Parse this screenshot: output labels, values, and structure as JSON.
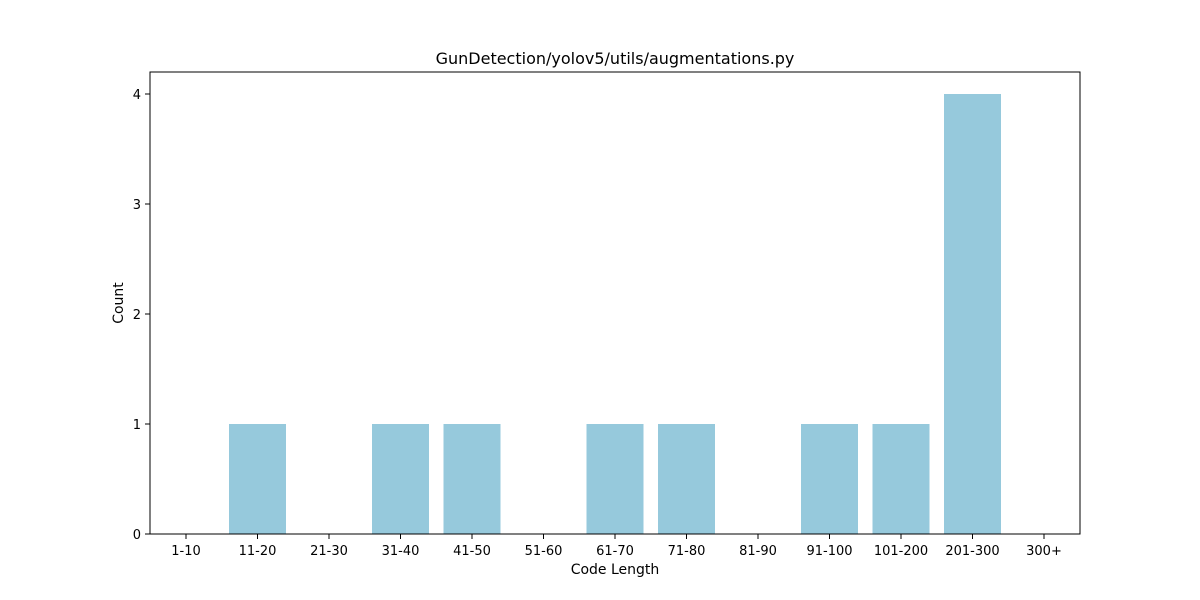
{
  "chart_data": {
    "type": "bar",
    "title": "GunDetection/yolov5/utils/augmentations.py",
    "xlabel": "Code Length",
    "ylabel": "Count",
    "categories": [
      "1-10",
      "11-20",
      "21-30",
      "31-40",
      "41-50",
      "51-60",
      "61-70",
      "71-80",
      "81-90",
      "91-100",
      "101-200",
      "201-300",
      "300+"
    ],
    "values": [
      0,
      1,
      0,
      1,
      1,
      0,
      1,
      1,
      0,
      1,
      1,
      4,
      0
    ],
    "yticks": [
      0,
      1,
      2,
      3,
      4
    ],
    "ylim": [
      0,
      4.2
    ],
    "bar_color": "#96c9dc",
    "grid": false,
    "legend": "none"
  }
}
